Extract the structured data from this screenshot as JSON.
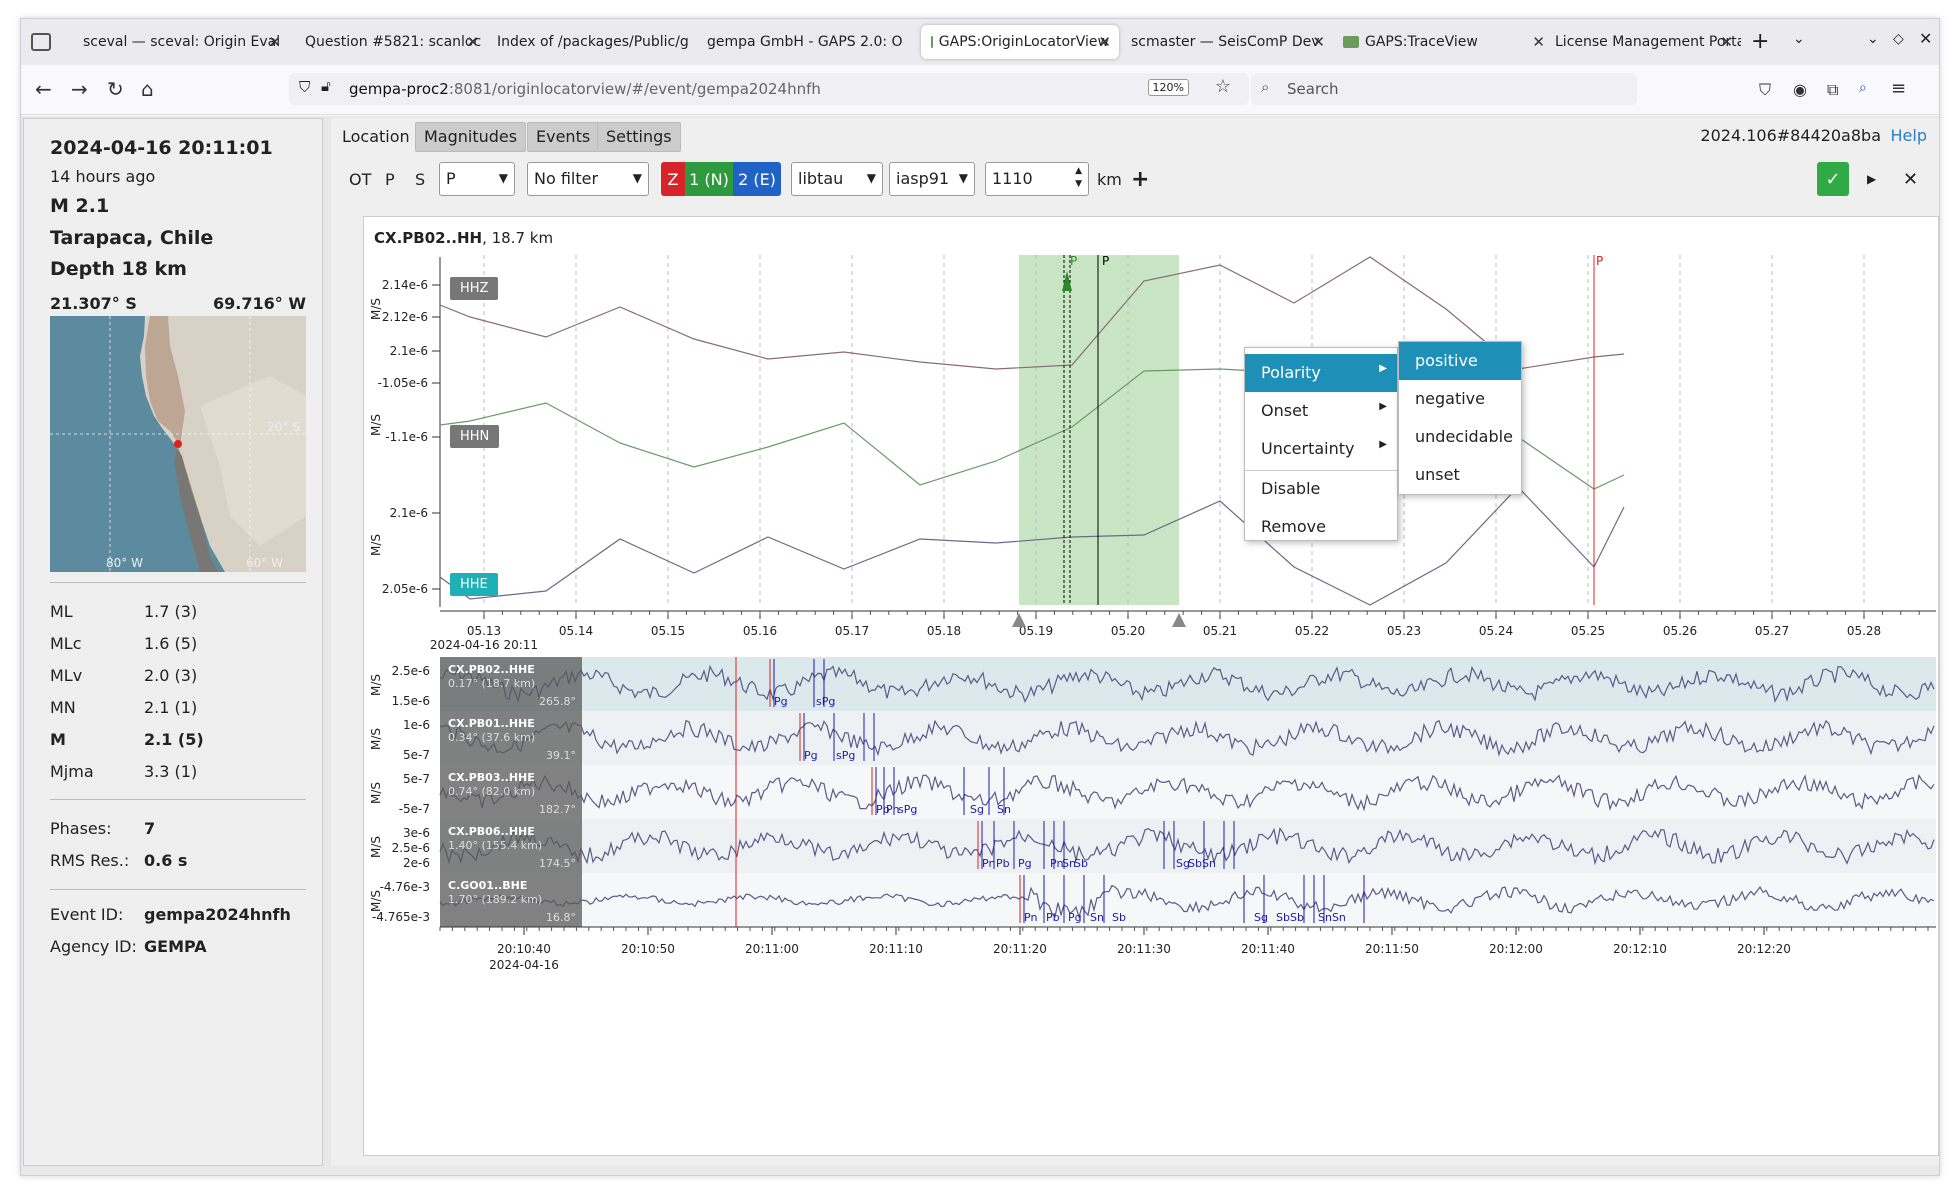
{
  "browser": {
    "tabs": [
      {
        "label": "sceval — sceval: Origin Eval",
        "active": false
      },
      {
        "label": "Question #5821: scanloc",
        "active": false
      },
      {
        "label": "Index of /packages/Public/g",
        "active": false
      },
      {
        "label": "gempa GmbH - GAPS 2.0: O",
        "active": false
      },
      {
        "label": "GAPS:OriginLocatorView",
        "active": true
      },
      {
        "label": "scmaster — SeisComP Dev",
        "active": false
      },
      {
        "label": "GAPS:TraceView",
        "active": false
      },
      {
        "label": "License Management Portal",
        "active": false
      }
    ],
    "url_host": "gempa-proc2",
    "url_rest": ":8081/originlocatorview/#/event/gempa2024hnfh",
    "zoom": "120%",
    "search_placeholder": "Search"
  },
  "sidebar": {
    "datetime": "2024-04-16 20:11:01",
    "ago": "14 hours ago",
    "magnitude": "M 2.1",
    "region": "Tarapaca, Chile",
    "depth": "Depth 18 km",
    "lat": "21.307° S",
    "lon": "69.716° W",
    "map_labels": {
      "lat": "20° S",
      "lon1": "80° W",
      "lon2": "60° W"
    },
    "magnitudes": [
      {
        "type": "ML",
        "value": "1.7 (3)",
        "bold": false
      },
      {
        "type": "MLc",
        "value": "1.6 (5)",
        "bold": false
      },
      {
        "type": "MLv",
        "value": "2.0 (3)",
        "bold": false
      },
      {
        "type": "MN",
        "value": "2.1 (1)",
        "bold": false
      },
      {
        "type": "M",
        "value": "2.1 (5)",
        "bold": true
      },
      {
        "type": "Mjma",
        "value": "3.3 (1)",
        "bold": false
      }
    ],
    "phases_label": "Phases:",
    "phases_value": "7",
    "rms_label": "RMS Res.:",
    "rms_value": "0.6 s",
    "event_id_label": "Event ID:",
    "event_id": "gempa2024hnfh",
    "agency_label": "Agency ID:",
    "agency": "GEMPA"
  },
  "main": {
    "tabs": [
      "Location",
      "Magnitudes",
      "Events",
      "Settings"
    ],
    "event_code": "2024.106#84420a8ba",
    "help": "Help",
    "toolbar": {
      "ot": "OT",
      "p": "P",
      "s": "S",
      "phase_select": "P",
      "filter_select": "No filter",
      "comp_z": "Z",
      "comp_n": "1 (N)",
      "comp_e": "2 (E)",
      "locator": "libtau",
      "model": "iasp91",
      "distance": "1110",
      "unit": "km",
      "plus": "+"
    },
    "trace_header": {
      "station": "CX.PB02..HH",
      "dist": ", 18.7 km"
    },
    "channels": [
      {
        "label": "HHZ",
        "active": false,
        "unit": "M/S",
        "ticks": [
          "2.14e-6",
          "2.12e-6",
          "2.1e-6"
        ]
      },
      {
        "label": "HHN",
        "active": false,
        "unit": "M/S",
        "ticks": [
          "-1.05e-6",
          "-1.1e-6"
        ]
      },
      {
        "label": "HHE",
        "active": true,
        "unit": "M/S",
        "ticks": [
          "2.1e-6",
          "2.05e-6"
        ]
      }
    ],
    "upper_time_ticks": [
      "05.13",
      "05.14",
      "05.15",
      "05.16",
      "05.17",
      "05.18",
      "05.19",
      "05.20",
      "05.21",
      "05.22",
      "05.23",
      "05.24",
      "05.25",
      "05.26",
      "05.27",
      "05.28"
    ],
    "upper_time_ref": "2024-04-16 20:11",
    "pick_labels": [
      "P",
      "P",
      "P"
    ],
    "context_menu": {
      "items": [
        "Polarity",
        "Onset",
        "Uncertainty",
        "Disable",
        "Remove"
      ],
      "submenu": [
        "positive",
        "negative",
        "undecidable",
        "unset"
      ]
    },
    "stations": [
      {
        "name": "CX.PB02..HHE",
        "info": "0.17° (18.7 km)",
        "az": "265.8°",
        "ticks": [
          "2.5e-6",
          "1.5e-6"
        ],
        "phases": [
          "Pg",
          "sPg"
        ]
      },
      {
        "name": "CX.PB01..HHE",
        "info": "0.34° (37.6 km)",
        "az": "39.1°",
        "ticks": [
          "1e-6",
          "5e-7"
        ],
        "phases": [
          "Pg",
          "sPg"
        ]
      },
      {
        "name": "CX.PB03..HHE",
        "info": "0.74° (82.0 km)",
        "az": "182.7°",
        "ticks": [
          "5e-7",
          "-5e-7"
        ],
        "phases": [
          "Pb",
          "Pn",
          "sPg",
          "Sg",
          "Sn"
        ]
      },
      {
        "name": "CX.PB06..HHE",
        "info": "1.40° (155.4 km)",
        "az": "174.5°",
        "ticks": [
          "3e-6",
          "2.5e-6",
          "2e-6"
        ],
        "phases": [
          "Pn",
          "Pb",
          "Pg",
          "Pn",
          "Sn",
          "Sb",
          "Sg",
          "SbSn"
        ]
      },
      {
        "name": "C.GO01..BHE",
        "info": "1.70° (189.2 km)",
        "az": "16.8°",
        "ticks": [
          "-4.76e-3",
          "-4.765e-3"
        ],
        "phases": [
          "Pn",
          "Pb",
          "Pg",
          "Sn",
          "Sb",
          "Sg",
          "SbSb",
          "SnSn"
        ]
      }
    ],
    "lower_time_ticks": [
      "20:10:40",
      "20:10:50",
      "20:11:00",
      "20:11:10",
      "20:11:20",
      "20:11:30",
      "20:11:40",
      "20:11:50",
      "20:12:00",
      "20:12:10",
      "20:12:20"
    ],
    "lower_time_ref": "2024-04-16",
    "colors": {
      "selection": "#c9e6c4",
      "pick_red": "#e02020",
      "pick_blue": "#1a1aa8",
      "accent": "#1e90b8"
    }
  }
}
